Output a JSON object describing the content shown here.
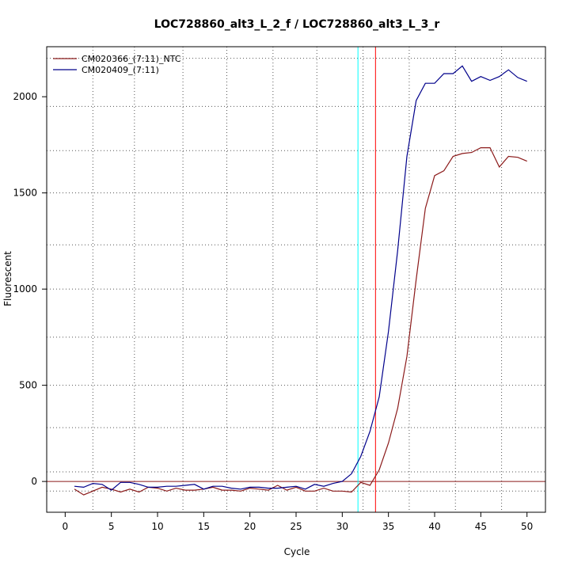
{
  "chart_data": {
    "type": "line",
    "title": "LOC728860_alt3_L_2_f / LOC728860_alt3_L_3_r",
    "xlabel": "Cycle",
    "ylabel": "Fluorescent",
    "xlim": [
      -2,
      52
    ],
    "ylim": [
      -160,
      2260
    ],
    "x_ticks": [
      0,
      5,
      10,
      15,
      20,
      25,
      30,
      35,
      40,
      45,
      50
    ],
    "y_ticks": [
      0,
      500,
      1000,
      1500,
      2000
    ],
    "grid": "dotted",
    "legend_position": "top-left",
    "x_minor_grid": [
      3,
      7.5,
      12.75,
      17.5,
      22.5,
      27.25,
      32.25,
      37.25,
      42.25,
      47.25
    ],
    "y_minor_grid": [
      -50,
      50,
      280,
      500,
      750,
      1000,
      1230,
      1500,
      1720,
      1950,
      2200
    ],
    "series": [
      {
        "name": "CM020366_(7:11)_NTC",
        "color": "#8b1a1a",
        "x": [
          1,
          2,
          3,
          4,
          5,
          6,
          7,
          8,
          9,
          10,
          11,
          12,
          13,
          14,
          15,
          16,
          17,
          18,
          19,
          20,
          21,
          22,
          23,
          24,
          25,
          26,
          27,
          28,
          29,
          30,
          31,
          32,
          33,
          34,
          35,
          36,
          37,
          38,
          39,
          40,
          41,
          42,
          43,
          44,
          45,
          46,
          47,
          48,
          49,
          50
        ],
        "values": [
          -40,
          -70,
          -50,
          -30,
          -40,
          -55,
          -40,
          -55,
          -30,
          -35,
          -50,
          -35,
          -45,
          -45,
          -40,
          -30,
          -45,
          -45,
          -50,
          -35,
          -40,
          -45,
          -20,
          -45,
          -30,
          -50,
          -50,
          -35,
          -50,
          -50,
          -55,
          -5,
          -20,
          60,
          200,
          380,
          650,
          1050,
          1420,
          1590,
          1615,
          1690,
          1705,
          1710,
          1735,
          1735,
          1635,
          1690,
          1685,
          1665
        ]
      },
      {
        "name": "CM020409_(7:11)",
        "color": "#00008b",
        "x": [
          1,
          2,
          3,
          4,
          5,
          6,
          7,
          8,
          9,
          10,
          11,
          12,
          13,
          14,
          15,
          16,
          17,
          18,
          19,
          20,
          21,
          22,
          23,
          24,
          25,
          26,
          27,
          28,
          29,
          30,
          31,
          32,
          33,
          34,
          35,
          36,
          37,
          38,
          39,
          40,
          41,
          42,
          43,
          44,
          45,
          46,
          47,
          48,
          49,
          50
        ],
        "values": [
          -25,
          -30,
          -10,
          -15,
          -45,
          -5,
          -5,
          -15,
          -30,
          -30,
          -25,
          -25,
          -20,
          -15,
          -40,
          -25,
          -25,
          -35,
          -40,
          -30,
          -30,
          -35,
          -35,
          -30,
          -25,
          -40,
          -15,
          -25,
          -10,
          0,
          40,
          130,
          260,
          440,
          780,
          1200,
          1690,
          1980,
          2070,
          2070,
          2120,
          2120,
          2160,
          2080,
          2105,
          2085,
          2105,
          2140,
          2100,
          2080
        ]
      }
    ],
    "baseline": {
      "value": 0,
      "color": "#8b1a1a"
    },
    "threshold_lines": [
      {
        "x": 31.7,
        "color": "#00ffff"
      },
      {
        "x": 33.6,
        "color": "#ff0000"
      }
    ]
  }
}
